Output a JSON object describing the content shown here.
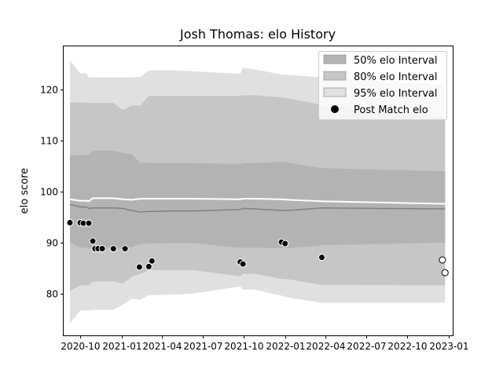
{
  "chart_data": {
    "type": "area",
    "title": "Josh Thomas: elo History",
    "xlabel": "",
    "ylabel": "elo score",
    "xlim": [
      "2020-08-25",
      "2023-01-10"
    ],
    "ylim": [
      71.8,
      128.5
    ],
    "x_ticks": [
      "2020-10",
      "2021-01",
      "2021-04",
      "2021-07",
      "2021-10",
      "2022-01",
      "2022-04",
      "2022-07",
      "2022-10",
      "2023-01"
    ],
    "y_ticks": [
      80,
      90,
      100,
      110,
      120
    ],
    "grid": false,
    "legend_position": "upper right",
    "legend": [
      {
        "label": "50% elo Interval",
        "kind": "band",
        "color": "#b3b3b3"
      },
      {
        "label": "80% elo Interval",
        "kind": "band",
        "color": "#c6c6c6"
      },
      {
        "label": "95% elo Interval",
        "kind": "band",
        "color": "#e0e0e0"
      },
      {
        "label": "Post Match elo",
        "kind": "marker",
        "color": "#000000"
      }
    ],
    "colors": {
      "band_50": "#b3b3b3",
      "band_80": "#c6c6c6",
      "band_95": "#e0e0e0",
      "median_line": "#808080",
      "mean_line": "#ffffff",
      "played_marker": "#000000",
      "projected_marker": "#ffffff"
    },
    "bands": {
      "dates": [
        "2020-09-08",
        "2020-10-01",
        "2020-10-14",
        "2020-10-20",
        "2020-10-29",
        "2020-11-19",
        "2020-12-14",
        "2021-01-04",
        "2021-01-24",
        "2021-02-12",
        "2021-03-03",
        "2021-03-18",
        "2021-04-13",
        "2021-05-03",
        "2021-06-09",
        "2021-09-23",
        "2021-09-29",
        "2021-10-24",
        "2021-12-24",
        "2022-01-08",
        "2022-03-24",
        "2022-12-24"
      ],
      "mean": [
        98.5,
        98.2,
        98.2,
        98.1,
        98.7,
        98.7,
        98.7,
        98.5,
        98.4,
        98.6,
        98.6,
        98.6,
        98.6,
        98.6,
        98.6,
        98.5,
        98.6,
        98.6,
        98.5,
        98.4,
        98.1,
        97.6
      ],
      "median": [
        97.5,
        97.0,
        97.0,
        96.7,
        96.8,
        96.8,
        96.8,
        96.7,
        96.3,
        96.0,
        96.1,
        96.1,
        96.2,
        96.2,
        96.2,
        96.5,
        96.7,
        96.6,
        96.3,
        96.3,
        96.8,
        96.6
      ],
      "p25": [
        90.0,
        89.0,
        89.0,
        88.8,
        89.0,
        89.0,
        89.0,
        88.9,
        89.2,
        89.7,
        89.8,
        89.8,
        89.9,
        89.9,
        89.9,
        89.0,
        89.0,
        89.0,
        88.9,
        88.9,
        89.5,
        90.0
      ],
      "p75": [
        107.0,
        107.2,
        107.2,
        107.2,
        108.0,
        108.0,
        108.0,
        107.6,
        107.3,
        105.7,
        105.6,
        105.6,
        105.6,
        105.6,
        105.6,
        105.4,
        105.6,
        105.6,
        105.8,
        105.7,
        104.6,
        104.0
      ],
      "p10": [
        80.5,
        81.6,
        81.6,
        81.6,
        82.4,
        82.4,
        82.4,
        82.0,
        83.3,
        83.9,
        84.6,
        84.6,
        84.6,
        84.6,
        84.6,
        83.4,
        83.9,
        83.9,
        82.9,
        82.8,
        81.7,
        81.6
      ],
      "p90": [
        117.5,
        117.5,
        117.4,
        117.4,
        117.4,
        117.4,
        117.4,
        116.0,
        116.9,
        116.9,
        118.8,
        118.8,
        118.8,
        118.8,
        118.8,
        118.8,
        118.9,
        118.9,
        118.5,
        118.3,
        117.0,
        114.5
      ],
      "p2_5": [
        74.2,
        76.7,
        76.7,
        76.7,
        76.8,
        76.8,
        76.8,
        77.8,
        79.0,
        78.8,
        79.7,
        79.7,
        79.8,
        79.8,
        80.0,
        81.4,
        80.8,
        80.8,
        79.6,
        79.2,
        78.2,
        78.2
      ],
      "p97_5": [
        125.7,
        123.2,
        123.2,
        122.4,
        122.4,
        122.4,
        122.4,
        122.4,
        122.4,
        122.5,
        123.8,
        123.8,
        123.8,
        123.8,
        123.6,
        123.1,
        124.3,
        124.0,
        123.0,
        122.9,
        122.4,
        120.9
      ]
    },
    "points": [
      {
        "date": "2020-09-08",
        "elo": 93.9,
        "status": "played"
      },
      {
        "date": "2020-10-01",
        "elo": 93.9,
        "status": "played"
      },
      {
        "date": "2020-10-08",
        "elo": 93.8,
        "status": "played"
      },
      {
        "date": "2020-10-20",
        "elo": 93.8,
        "status": "played"
      },
      {
        "date": "2020-10-29",
        "elo": 90.3,
        "status": "played"
      },
      {
        "date": "2020-11-03",
        "elo": 88.8,
        "status": "played"
      },
      {
        "date": "2020-11-10",
        "elo": 88.8,
        "status": "played"
      },
      {
        "date": "2020-11-19",
        "elo": 88.8,
        "status": "played"
      },
      {
        "date": "2020-12-14",
        "elo": 88.8,
        "status": "played"
      },
      {
        "date": "2021-01-09",
        "elo": 88.8,
        "status": "played"
      },
      {
        "date": "2021-02-10",
        "elo": 85.2,
        "status": "played"
      },
      {
        "date": "2021-03-03",
        "elo": 85.3,
        "status": "played"
      },
      {
        "date": "2021-03-10",
        "elo": 86.4,
        "status": "played"
      },
      {
        "date": "2021-09-23",
        "elo": 86.2,
        "status": "played"
      },
      {
        "date": "2021-09-29",
        "elo": 85.8,
        "status": "played"
      },
      {
        "date": "2021-12-24",
        "elo": 90.1,
        "status": "played"
      },
      {
        "date": "2022-01-01",
        "elo": 89.8,
        "status": "played"
      },
      {
        "date": "2022-03-24",
        "elo": 87.1,
        "status": "played"
      },
      {
        "date": "2022-12-18",
        "elo": 86.6,
        "status": "projected"
      },
      {
        "date": "2022-12-24",
        "elo": 84.1,
        "status": "projected"
      }
    ]
  }
}
